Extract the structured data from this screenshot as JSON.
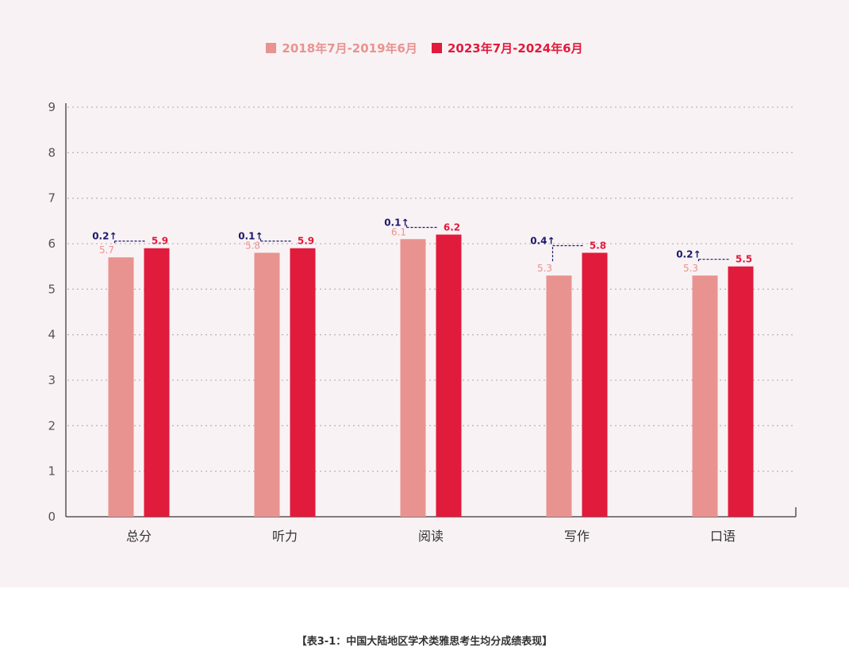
{
  "colors": {
    "before": "#e8938f",
    "after": "#e01b3c",
    "delta": "#1b1a6b",
    "axis": "#555555",
    "grid": "#b9b9b9"
  },
  "legend": {
    "before_label": "2018年7月-2019年6月",
    "after_label": "2023年7月-2024年6月"
  },
  "caption": "【表3-1：中国大陆地区学术类雅思考生均分成绩表现】",
  "chart_data": {
    "type": "bar",
    "categories": [
      "总分",
      "听力",
      "阅读",
      "写作",
      "口语"
    ],
    "series": [
      {
        "name": "2018年7月-2019年6月",
        "values": [
          5.7,
          5.8,
          6.1,
          5.3,
          5.3
        ]
      },
      {
        "name": "2023年7月-2024年6月",
        "values": [
          5.9,
          5.9,
          6.2,
          5.8,
          5.5
        ]
      }
    ],
    "value_labels_before": [
      "5.7",
      "5.8",
      "6.1",
      "5.3",
      "5.3"
    ],
    "value_labels_after": [
      "5.9",
      "5.9",
      "6.2",
      "5.8",
      "5.5"
    ],
    "delta_labels": [
      "0.2↑",
      "0.1↑",
      "0.1↑",
      "0.4↑",
      "0.2↑"
    ],
    "ylim": [
      0,
      9
    ],
    "yticks": [
      "0",
      "1",
      "2",
      "3",
      "4",
      "5",
      "6",
      "7",
      "8",
      "9"
    ],
    "grid": true,
    "legend_position": "top-center"
  }
}
